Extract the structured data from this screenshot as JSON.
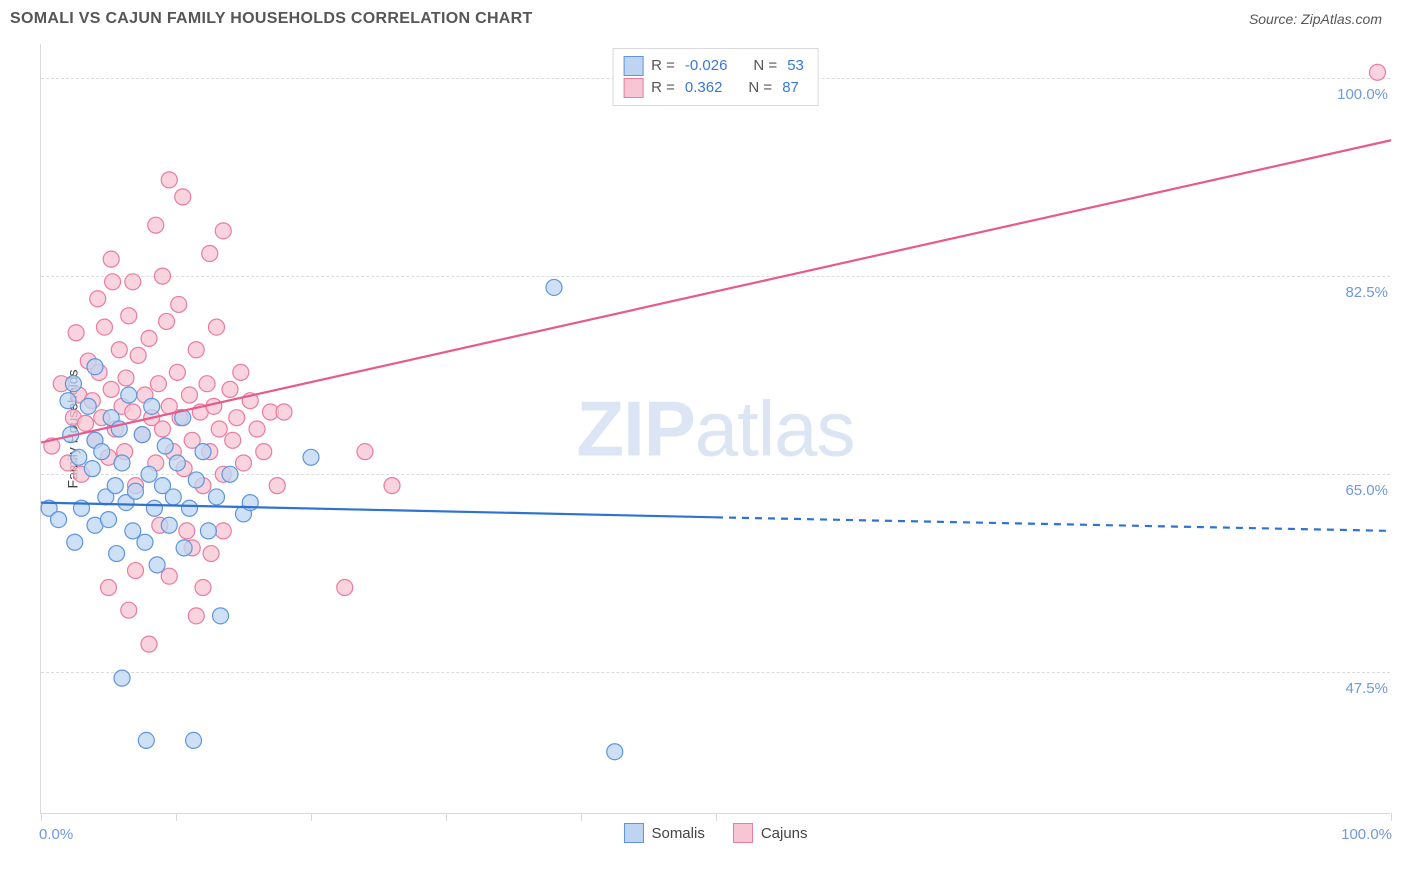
{
  "header": {
    "title": "SOMALI VS CAJUN FAMILY HOUSEHOLDS CORRELATION CHART",
    "source": "Source: ZipAtlas.com"
  },
  "watermark": {
    "zip": "ZIP",
    "atlas": "atlas"
  },
  "chart": {
    "type": "scatter",
    "xlim": [
      0,
      100
    ],
    "ylim": [
      35,
      103
    ],
    "y_axis": {
      "label": "Family Households",
      "gridlines": [
        47.5,
        65.0,
        82.5,
        100.0
      ],
      "tick_format": "%"
    },
    "x_axis": {
      "ticks_at": [
        0,
        10,
        20,
        30,
        40,
        50,
        100
      ],
      "label_left": "0.0%",
      "label_right": "100.0%"
    },
    "colors": {
      "series_a_fill": "#bdd5f2",
      "series_a_stroke": "#5f95de",
      "series_b_fill": "#f7c6d4",
      "series_b_stroke": "#ea7ba1",
      "line_a": "#2f73cf",
      "line_b": "#e75a8d",
      "grid": "#dcdcdc",
      "axis": "#d9d9d9",
      "ylabel_text": "#6f98dd"
    },
    "marker_radius": 8,
    "line_width": 2.2,
    "legend_stats": {
      "rows": [
        {
          "swatch_fill": "#bdd5f2",
          "swatch_stroke": "#5f95de",
          "r": "-0.026",
          "n": "53"
        },
        {
          "swatch_fill": "#f7c6d4",
          "swatch_stroke": "#ea7ba1",
          "r": "0.362",
          "n": "87"
        }
      ]
    },
    "legend_bottom": {
      "items": [
        {
          "swatch_fill": "#bdd5f2",
          "swatch_stroke": "#5f95de",
          "label": "Somalis"
        },
        {
          "swatch_fill": "#f7c6d4",
          "swatch_stroke": "#ea7ba1",
          "label": "Cajuns"
        }
      ]
    },
    "series_a": {
      "name": "Somalis",
      "trend_solid": {
        "x1": 0,
        "y1": 62.5,
        "x2": 50,
        "y2": 61.2
      },
      "trend_dashed": {
        "x1": 50,
        "y1": 61.2,
        "x2": 100,
        "y2": 60.0
      },
      "points": [
        [
          0.6,
          62.0
        ],
        [
          1.3,
          61.0
        ],
        [
          2.0,
          71.5
        ],
        [
          2.2,
          68.5
        ],
        [
          2.4,
          73.0
        ],
        [
          2.8,
          66.5
        ],
        [
          3.0,
          62.0
        ],
        [
          3.5,
          71.0
        ],
        [
          3.8,
          65.5
        ],
        [
          4.0,
          68.0
        ],
        [
          4.0,
          60.5
        ],
        [
          4.0,
          74.5
        ],
        [
          4.5,
          67.0
        ],
        [
          4.8,
          63.0
        ],
        [
          5.0,
          61.0
        ],
        [
          5.2,
          70.0
        ],
        [
          5.5,
          64.0
        ],
        [
          5.6,
          58.0
        ],
        [
          5.8,
          69.0
        ],
        [
          6.0,
          66.0
        ],
        [
          6.3,
          62.5
        ],
        [
          6.5,
          72.0
        ],
        [
          6.8,
          60.0
        ],
        [
          7.0,
          63.5
        ],
        [
          7.5,
          68.5
        ],
        [
          7.7,
          59.0
        ],
        [
          8.0,
          65.0
        ],
        [
          8.2,
          71.0
        ],
        [
          8.4,
          62.0
        ],
        [
          8.6,
          57.0
        ],
        [
          9.0,
          64.0
        ],
        [
          9.2,
          67.5
        ],
        [
          9.5,
          60.5
        ],
        [
          9.8,
          63.0
        ],
        [
          10.1,
          66.0
        ],
        [
          10.5,
          70.0
        ],
        [
          10.6,
          58.5
        ],
        [
          11.0,
          62.0
        ],
        [
          11.5,
          64.5
        ],
        [
          12.0,
          67.0
        ],
        [
          12.4,
          60.0
        ],
        [
          13.0,
          63.0
        ],
        [
          13.3,
          52.5
        ],
        [
          14.0,
          65.0
        ],
        [
          15.0,
          61.5
        ],
        [
          15.5,
          62.5
        ],
        [
          20.0,
          66.5
        ],
        [
          6.0,
          47.0
        ],
        [
          7.8,
          41.5
        ],
        [
          11.3,
          41.5
        ],
        [
          38.0,
          81.5
        ],
        [
          42.5,
          40.5
        ],
        [
          2.5,
          59.0
        ]
      ]
    },
    "series_b": {
      "name": "Cajuns",
      "trend": {
        "x1": 0,
        "y1": 67.8,
        "x2": 100,
        "y2": 94.5
      },
      "points": [
        [
          0.8,
          67.5
        ],
        [
          1.5,
          73.0
        ],
        [
          2.0,
          66.0
        ],
        [
          2.4,
          70.0
        ],
        [
          2.6,
          77.5
        ],
        [
          2.8,
          72.0
        ],
        [
          3.0,
          65.0
        ],
        [
          3.3,
          69.5
        ],
        [
          3.5,
          75.0
        ],
        [
          3.8,
          71.5
        ],
        [
          4.0,
          68.0
        ],
        [
          4.2,
          80.5
        ],
        [
          4.3,
          74.0
        ],
        [
          4.5,
          70.0
        ],
        [
          4.7,
          78.0
        ],
        [
          5.0,
          66.5
        ],
        [
          5.2,
          72.5
        ],
        [
          5.3,
          82.0
        ],
        [
          5.5,
          69.0
        ],
        [
          5.8,
          76.0
        ],
        [
          6.0,
          71.0
        ],
        [
          6.2,
          67.0
        ],
        [
          6.3,
          73.5
        ],
        [
          6.5,
          79.0
        ],
        [
          6.8,
          70.5
        ],
        [
          7.0,
          64.0
        ],
        [
          7.2,
          75.5
        ],
        [
          7.5,
          68.5
        ],
        [
          7.7,
          72.0
        ],
        [
          8.0,
          77.0
        ],
        [
          8.2,
          70.0
        ],
        [
          8.5,
          66.0
        ],
        [
          8.7,
          73.0
        ],
        [
          9.0,
          69.0
        ],
        [
          9.3,
          78.5
        ],
        [
          9.5,
          71.0
        ],
        [
          9.8,
          67.0
        ],
        [
          10.1,
          74.0
        ],
        [
          10.3,
          70.0
        ],
        [
          10.6,
          65.5
        ],
        [
          11.0,
          72.0
        ],
        [
          11.2,
          68.0
        ],
        [
          11.5,
          76.0
        ],
        [
          11.8,
          70.5
        ],
        [
          12.0,
          64.0
        ],
        [
          12.3,
          73.0
        ],
        [
          12.5,
          67.0
        ],
        [
          12.8,
          71.0
        ],
        [
          13.0,
          78.0
        ],
        [
          13.2,
          69.0
        ],
        [
          13.5,
          65.0
        ],
        [
          14.0,
          72.5
        ],
        [
          14.2,
          68.0
        ],
        [
          14.5,
          70.0
        ],
        [
          14.8,
          74.0
        ],
        [
          15.0,
          66.0
        ],
        [
          15.5,
          71.5
        ],
        [
          16.0,
          69.0
        ],
        [
          16.5,
          67.0
        ],
        [
          17.0,
          70.5
        ],
        [
          17.5,
          64.0
        ],
        [
          18.0,
          70.5
        ],
        [
          22.5,
          55.0
        ],
        [
          24.0,
          67.0
        ],
        [
          26.0,
          64.0
        ],
        [
          13.5,
          60.0
        ],
        [
          8.8,
          60.5
        ],
        [
          10.8,
          60.0
        ],
        [
          11.2,
          58.5
        ],
        [
          12.6,
          58.0
        ],
        [
          7.0,
          56.5
        ],
        [
          9.5,
          56.0
        ],
        [
          12.0,
          55.0
        ],
        [
          5.0,
          55.0
        ],
        [
          6.5,
          53.0
        ],
        [
          11.5,
          52.5
        ],
        [
          8.0,
          50.0
        ],
        [
          5.2,
          84.0
        ],
        [
          6.8,
          82.0
        ],
        [
          9.0,
          82.5
        ],
        [
          10.2,
          80.0
        ],
        [
          8.5,
          87.0
        ],
        [
          10.5,
          89.5
        ],
        [
          12.5,
          84.5
        ],
        [
          13.5,
          86.5
        ],
        [
          9.5,
          91.0
        ],
        [
          99.0,
          100.5
        ]
      ]
    }
  }
}
